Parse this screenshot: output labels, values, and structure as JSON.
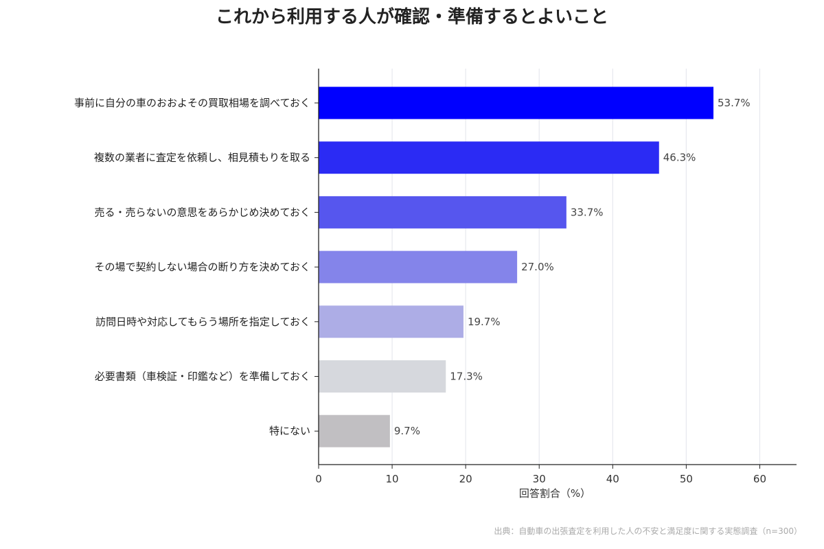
{
  "chart_data": {
    "type": "bar",
    "orientation": "horizontal",
    "title": "これから利用する人が確認・準備するとよいこと",
    "xlabel": "回答割合（%）",
    "ylabel": "",
    "xlim": [
      0,
      65
    ],
    "xticks": [
      0,
      10,
      20,
      30,
      40,
      50,
      60
    ],
    "grid": true,
    "categories": [
      "事前に自分の車のおおよその買取相場を調べておく",
      "複数の業者に査定を依頼し、相見積もりを取る",
      "売る・売らないの意思をあらかじめ決めておく",
      "その場で契約しない場合の断り方を決めておく",
      "訪問日時や対応してもらう場所を指定しておく",
      "必要書類（車検証・印鑑など）を準備しておく",
      "特にない"
    ],
    "values": [
      53.7,
      46.3,
      33.7,
      27.0,
      19.7,
      17.3,
      9.7
    ],
    "value_labels": [
      "53.7%",
      "46.3%",
      "33.7%",
      "27.0%",
      "19.7%",
      "17.3%",
      "9.7%"
    ],
    "colors": [
      "#0000ff",
      "#2b2bf4",
      "#5656ee",
      "#8484ea",
      "#adade6",
      "#d6d8dd",
      "#c1bfc2"
    ],
    "source": "出典：自動車の出張査定を利用した人の不安と満足度に関する実態調査（n=300）"
  }
}
